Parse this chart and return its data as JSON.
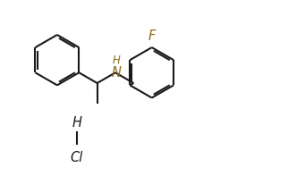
{
  "bg_color": "#ffffff",
  "line_color": "#1a1a1a",
  "line_width": 1.5,
  "label_color_F": "#8B6914",
  "label_color_N": "#8B6914",
  "label_color_Cl": "#1a1a1a",
  "figsize": [
    3.22,
    1.97
  ],
  "dpi": 100,
  "xlim": [
    0,
    10
  ],
  "ylim": [
    0,
    6.2
  ]
}
